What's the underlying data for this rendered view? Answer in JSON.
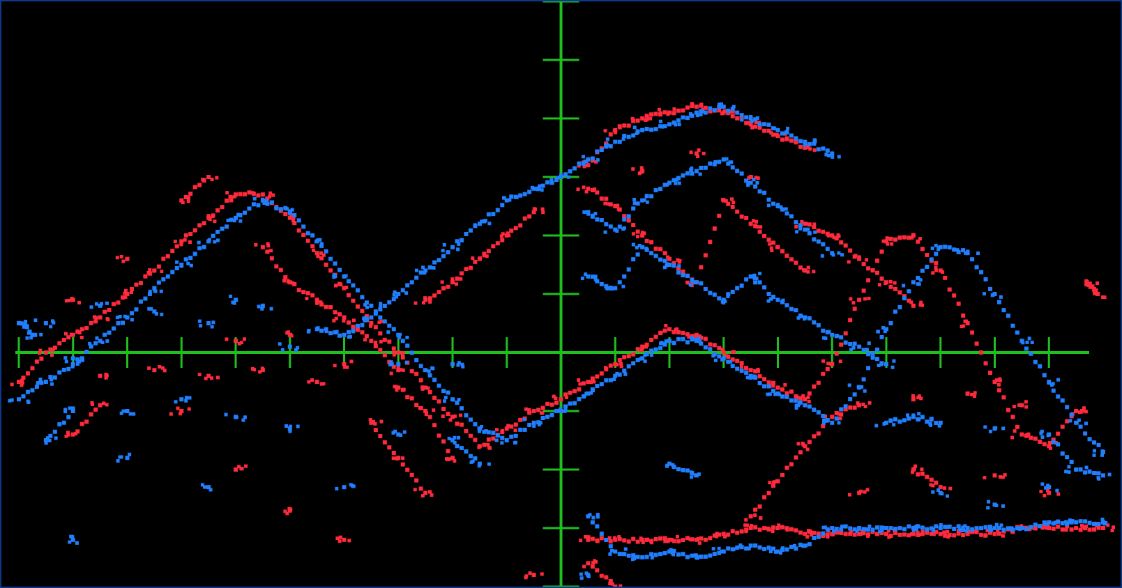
{
  "colors": {
    "background": "#000000",
    "frame_border": "#0b3a8c",
    "crosshair": "#1fbf1f",
    "series_red": "#ff2a3c",
    "series_blue": "#1f7fff"
  },
  "chart_data": {
    "type": "scatter",
    "title": "",
    "xlabel": "",
    "ylabel": "",
    "xlim": [
      -10,
      10
    ],
    "ylim": [
      -4,
      6
    ],
    "axes_style": "crosshair with tick marks",
    "grid": false,
    "legend": "none",
    "x_tick_step": 1,
    "y_tick_step": 1,
    "series": [
      {
        "color": "red",
        "points": [
          [
            -10,
            -0.5
          ],
          [
            -9.5,
            0.0
          ],
          [
            -9.0,
            0.3
          ],
          [
            -8.5,
            0.6
          ],
          [
            -8.0,
            1.0
          ],
          [
            -7.5,
            1.4
          ],
          [
            -7.0,
            1.9
          ],
          [
            -6.5,
            2.3
          ],
          [
            -6.0,
            2.7
          ],
          [
            -5.5,
            2.7
          ],
          [
            -5.0,
            2.3
          ],
          [
            -4.5,
            1.7
          ],
          [
            -4.0,
            1.1
          ],
          [
            -3.5,
            0.5
          ],
          [
            -3.0,
            0.0
          ],
          [
            -2.5,
            -0.6
          ],
          [
            -2.0,
            -1.1
          ],
          [
            -1.5,
            -1.6
          ],
          [
            -1.0,
            -1.3
          ],
          [
            -0.5,
            -1.0
          ],
          [
            0.0,
            -0.8
          ],
          [
            0.5,
            -0.5
          ],
          [
            1.0,
            -0.2
          ],
          [
            1.5,
            0.1
          ],
          [
            2.0,
            0.4
          ],
          [
            2.5,
            0.3
          ],
          [
            3.0,
            0.0
          ],
          [
            3.5,
            -0.3
          ],
          [
            4.0,
            -0.6
          ],
          [
            4.5,
            -0.8
          ],
          [
            5.0,
            -0.2
          ],
          [
            5.5,
            0.9
          ],
          [
            6.0,
            1.9
          ],
          [
            6.5,
            2.0
          ],
          [
            7.0,
            1.4
          ],
          [
            7.5,
            0.5
          ],
          [
            8.0,
            -0.5
          ],
          [
            8.5,
            -1.4
          ],
          [
            9.0,
            -1.6
          ],
          [
            9.5,
            -1.0
          ],
          [
            -9.0,
            0.9
          ],
          [
            -8.0,
            1.6
          ],
          [
            -7.0,
            2.6
          ],
          [
            -6.5,
            3.0
          ],
          [
            -5.5,
            1.8
          ],
          [
            -5.0,
            1.2
          ],
          [
            -4.5,
            0.9
          ],
          [
            -4.0,
            0.6
          ],
          [
            -3.5,
            0.2
          ],
          [
            -3.0,
            -0.3
          ],
          [
            -6.0,
            0.2
          ],
          [
            -5.0,
            0.3
          ],
          [
            -4.0,
            -0.2
          ],
          [
            -3.0,
            -0.6
          ],
          [
            -2.5,
            -1.0
          ],
          [
            -2.0,
            -1.8
          ],
          [
            -2.5,
            0.9
          ],
          [
            -2.0,
            1.2
          ],
          [
            -1.5,
            1.6
          ],
          [
            -1.0,
            2.0
          ],
          [
            -0.5,
            2.4
          ],
          [
            0.5,
            3.2
          ],
          [
            1.0,
            3.8
          ],
          [
            1.5,
            4.0
          ],
          [
            2.0,
            4.1
          ],
          [
            2.5,
            4.2
          ],
          [
            3.0,
            4.1
          ],
          [
            3.5,
            3.9
          ],
          [
            4.0,
            3.7
          ],
          [
            4.5,
            3.5
          ],
          [
            0.5,
            2.8
          ],
          [
            1.0,
            2.5
          ],
          [
            1.5,
            2.0
          ],
          [
            2.0,
            1.6
          ],
          [
            2.5,
            1.2
          ],
          [
            3.0,
            2.6
          ],
          [
            3.5,
            2.2
          ],
          [
            4.0,
            1.8
          ],
          [
            4.5,
            1.4
          ],
          [
            1.5,
            3.1
          ],
          [
            2.5,
            3.4
          ],
          [
            3.5,
            3.0
          ],
          [
            4.5,
            2.2
          ],
          [
            5.0,
            2.0
          ],
          [
            5.5,
            1.6
          ],
          [
            6.0,
            1.2
          ],
          [
            6.5,
            0.8
          ],
          [
            0.5,
            -3.2
          ],
          [
            1.0,
            -3.2
          ],
          [
            1.5,
            -3.2
          ],
          [
            2.0,
            -3.2
          ],
          [
            2.5,
            -3.2
          ],
          [
            3.0,
            -3.1
          ],
          [
            3.5,
            -3.0
          ],
          [
            4.0,
            -3.0
          ],
          [
            4.5,
            -3.1
          ],
          [
            5.0,
            -3.1
          ],
          [
            5.5,
            -3.1
          ],
          [
            6.0,
            -3.1
          ],
          [
            6.5,
            -3.1
          ],
          [
            7.0,
            -3.1
          ],
          [
            7.5,
            -3.1
          ],
          [
            8.0,
            -3.1
          ],
          [
            8.5,
            -3.0
          ],
          [
            9.0,
            -3.0
          ],
          [
            9.5,
            -3.0
          ],
          [
            10.0,
            -3.0
          ],
          [
            3.5,
            -2.8
          ],
          [
            4.0,
            -2.2
          ],
          [
            4.5,
            -1.6
          ],
          [
            5.0,
            -1.1
          ],
          [
            5.5,
            -0.9
          ],
          [
            6.5,
            -0.8
          ],
          [
            7.5,
            -0.7
          ],
          [
            8.5,
            -0.9
          ],
          [
            9.5,
            -1.0
          ],
          [
            -8.5,
            -0.4
          ],
          [
            -7.5,
            -0.3
          ],
          [
            -6.5,
            -0.4
          ],
          [
            -5.5,
            -0.3
          ],
          [
            -4.5,
            -0.5
          ],
          [
            -3.5,
            -1.2
          ],
          [
            -3.0,
            -1.8
          ],
          [
            -2.5,
            -2.4
          ],
          [
            -4.0,
            -3.2
          ],
          [
            -5.0,
            -2.7
          ],
          [
            -6.0,
            -2.0
          ],
          [
            -9.0,
            -1.4
          ],
          [
            -8.5,
            -0.9
          ],
          [
            -7.0,
            -1.0
          ],
          [
            0.5,
            -3.6
          ],
          [
            1.0,
            -4.0
          ],
          [
            -0.5,
            -3.8
          ],
          [
            5.5,
            -2.4
          ],
          [
            6.5,
            -2.0
          ],
          [
            7.0,
            -2.3
          ],
          [
            8.0,
            -2.1
          ],
          [
            9.0,
            -2.4
          ],
          [
            9.7,
            1.2
          ],
          [
            9.9,
            1.0
          ]
        ]
      },
      {
        "color": "blue",
        "points": [
          [
            -10,
            -0.8
          ],
          [
            -9.5,
            -0.5
          ],
          [
            -9.0,
            -0.2
          ],
          [
            -8.5,
            0.2
          ],
          [
            -8.0,
            0.6
          ],
          [
            -7.5,
            1.1
          ],
          [
            -7.0,
            1.5
          ],
          [
            -6.5,
            1.9
          ],
          [
            -6.0,
            2.3
          ],
          [
            -5.5,
            2.6
          ],
          [
            -5.0,
            2.4
          ],
          [
            -4.5,
            1.9
          ],
          [
            -4.0,
            1.3
          ],
          [
            -3.5,
            0.8
          ],
          [
            -3.0,
            0.3
          ],
          [
            -2.5,
            -0.3
          ],
          [
            -2.0,
            -0.8
          ],
          [
            -1.5,
            -1.3
          ],
          [
            -1.0,
            -1.5
          ],
          [
            -0.5,
            -1.2
          ],
          [
            0.0,
            -1.0
          ],
          [
            0.5,
            -0.7
          ],
          [
            1.0,
            -0.4
          ],
          [
            1.5,
            -0.1
          ],
          [
            2.0,
            0.2
          ],
          [
            2.5,
            0.2
          ],
          [
            3.0,
            -0.1
          ],
          [
            3.5,
            -0.4
          ],
          [
            4.0,
            -0.7
          ],
          [
            4.5,
            -0.9
          ],
          [
            5.0,
            -1.2
          ],
          [
            5.5,
            -0.6
          ],
          [
            6.0,
            0.4
          ],
          [
            6.5,
            1.2
          ],
          [
            7.0,
            1.8
          ],
          [
            7.5,
            1.7
          ],
          [
            8.0,
            1.0
          ],
          [
            8.5,
            0.2
          ],
          [
            9.0,
            -0.5
          ],
          [
            9.5,
            -1.2
          ],
          [
            10.0,
            -1.7
          ],
          [
            -9.5,
            0.5
          ],
          [
            -8.5,
            0.8
          ],
          [
            -7.5,
            0.7
          ],
          [
            -6.5,
            0.5
          ],
          [
            -5.5,
            0.8
          ],
          [
            -4.5,
            0.4
          ],
          [
            -4.0,
            0.3
          ],
          [
            -3.5,
            0.6
          ],
          [
            -3.0,
            1.0
          ],
          [
            -2.5,
            1.4
          ],
          [
            -2.0,
            1.8
          ],
          [
            -1.5,
            2.2
          ],
          [
            -1.0,
            2.6
          ],
          [
            -0.5,
            2.8
          ],
          [
            0.0,
            3.0
          ],
          [
            0.5,
            3.3
          ],
          [
            1.0,
            3.6
          ],
          [
            1.5,
            3.8
          ],
          [
            2.0,
            3.9
          ],
          [
            2.5,
            4.1
          ],
          [
            3.0,
            4.2
          ],
          [
            3.5,
            4.0
          ],
          [
            4.0,
            3.8
          ],
          [
            4.5,
            3.6
          ],
          [
            5.0,
            3.4
          ],
          [
            0.5,
            2.4
          ],
          [
            1.0,
            2.1
          ],
          [
            1.5,
            2.6
          ],
          [
            2.0,
            2.9
          ],
          [
            2.5,
            3.1
          ],
          [
            3.0,
            3.3
          ],
          [
            3.5,
            2.9
          ],
          [
            4.0,
            2.5
          ],
          [
            4.5,
            2.1
          ],
          [
            5.0,
            1.7
          ],
          [
            0.5,
            1.3
          ],
          [
            1.0,
            1.1
          ],
          [
            1.5,
            1.8
          ],
          [
            2.0,
            1.5
          ],
          [
            2.5,
            1.2
          ],
          [
            3.0,
            0.9
          ],
          [
            3.5,
            1.3
          ],
          [
            4.0,
            0.9
          ],
          [
            4.5,
            0.6
          ],
          [
            5.0,
            0.3
          ],
          [
            5.5,
            0.1
          ],
          [
            6.0,
            -0.2
          ],
          [
            -9.0,
            -0.1
          ],
          [
            -6.0,
            0.9
          ],
          [
            -5.0,
            0.1
          ],
          [
            -3.0,
            -0.2
          ],
          [
            -2.0,
            -0.2
          ],
          [
            0.5,
            -2.8
          ],
          [
            1.0,
            -3.4
          ],
          [
            1.5,
            -3.5
          ],
          [
            2.0,
            -3.4
          ],
          [
            2.5,
            -3.5
          ],
          [
            3.0,
            -3.4
          ],
          [
            3.5,
            -3.3
          ],
          [
            4.0,
            -3.4
          ],
          [
            4.5,
            -3.3
          ],
          [
            5.0,
            -3.0
          ],
          [
            5.5,
            -3.0
          ],
          [
            6.0,
            -3.0
          ],
          [
            6.5,
            -3.0
          ],
          [
            7.0,
            -3.0
          ],
          [
            7.5,
            -3.0
          ],
          [
            8.0,
            -3.0
          ],
          [
            8.5,
            -3.0
          ],
          [
            9.0,
            -2.9
          ],
          [
            9.5,
            -2.9
          ],
          [
            10.0,
            -2.9
          ],
          [
            6.0,
            -1.2
          ],
          [
            6.5,
            -1.1
          ],
          [
            7.0,
            -1.2
          ],
          [
            8.0,
            -1.3
          ],
          [
            9.0,
            -1.4
          ],
          [
            9.5,
            -2.0
          ],
          [
            10.0,
            -2.1
          ],
          [
            -9.5,
            -1.5
          ],
          [
            -9.0,
            -1.0
          ],
          [
            -8.0,
            -1.0
          ],
          [
            -7.0,
            -0.8
          ],
          [
            -6.0,
            -1.1
          ],
          [
            -5.0,
            -1.3
          ],
          [
            -4.0,
            -2.3
          ],
          [
            -3.0,
            -1.4
          ],
          [
            -2.0,
            -1.5
          ],
          [
            -1.5,
            -1.9
          ],
          [
            -8.0,
            -1.8
          ],
          [
            -6.5,
            -2.3
          ],
          [
            -9.0,
            -3.2
          ],
          [
            0.5,
            -3.8
          ],
          [
            2.0,
            -1.9
          ],
          [
            2.5,
            -2.1
          ],
          [
            7.0,
            -2.4
          ],
          [
            8.0,
            -2.6
          ],
          [
            9.0,
            -2.3
          ],
          [
            -10,
            0.5
          ],
          [
            -9.7,
            0.3
          ]
        ]
      }
    ]
  }
}
